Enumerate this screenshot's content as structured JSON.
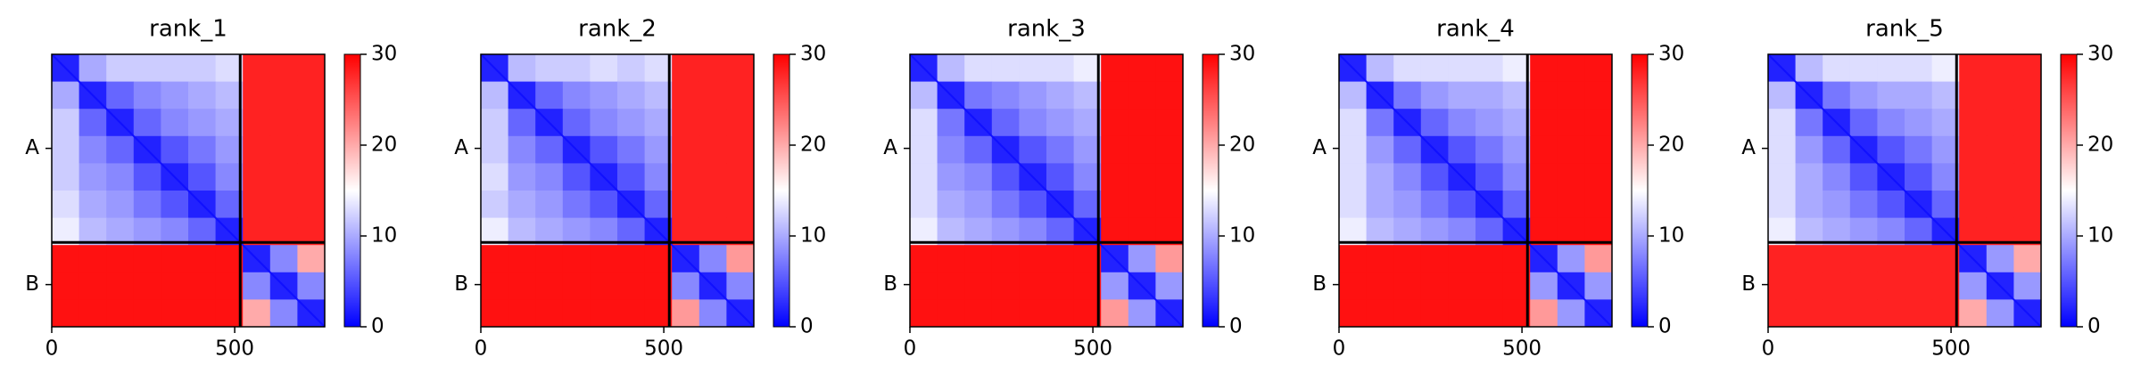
{
  "chart_data": [
    {
      "type": "heatmap",
      "title": "rank_1",
      "xlim": [
        0,
        746
      ],
      "xticks": [
        0,
        500
      ],
      "chains": [
        "A",
        "B"
      ],
      "chain_boundary": 515,
      "colormap": "bwr",
      "clim": [
        0,
        30
      ],
      "cticks": [
        0,
        10,
        20,
        30
      ],
      "z": [
        [
          2,
          10,
          12,
          12,
          12,
          12,
          13,
          28,
          28,
          28
        ],
        [
          10,
          2,
          6,
          8,
          9,
          10,
          11,
          28,
          28,
          28
        ],
        [
          12,
          6,
          2,
          6,
          8,
          9,
          10,
          28,
          28,
          28
        ],
        [
          12,
          8,
          6,
          2,
          5,
          7,
          9,
          28,
          28,
          28
        ],
        [
          12,
          9,
          8,
          5,
          2,
          5,
          8,
          28,
          28,
          28
        ],
        [
          13,
          10,
          9,
          7,
          5,
          2,
          6,
          28,
          28,
          28
        ],
        [
          14,
          11,
          10,
          9,
          8,
          6,
          2,
          28,
          28,
          28
        ],
        [
          29,
          29,
          29,
          29,
          29,
          29,
          29,
          2,
          8,
          20
        ],
        [
          29,
          29,
          29,
          29,
          29,
          29,
          29,
          8,
          2,
          8
        ],
        [
          29,
          29,
          29,
          29,
          29,
          29,
          29,
          20,
          8,
          2
        ]
      ]
    },
    {
      "type": "heatmap",
      "title": "rank_2",
      "xlim": [
        0,
        746
      ],
      "xticks": [
        0,
        500
      ],
      "chains": [
        "A",
        "B"
      ],
      "chain_boundary": 515,
      "colormap": "bwr",
      "clim": [
        0,
        30
      ],
      "cticks": [
        0,
        10,
        20,
        30
      ],
      "z": [
        [
          2,
          11,
          12,
          12,
          13,
          12,
          13,
          28,
          28,
          28
        ],
        [
          11,
          2,
          6,
          8,
          9,
          10,
          11,
          28,
          28,
          28
        ],
        [
          12,
          6,
          2,
          6,
          8,
          9,
          10,
          28,
          28,
          28
        ],
        [
          12,
          8,
          6,
          2,
          5,
          7,
          9,
          28,
          28,
          28
        ],
        [
          13,
          9,
          8,
          5,
          2,
          5,
          8,
          28,
          28,
          28
        ],
        [
          12,
          10,
          9,
          7,
          5,
          2,
          6,
          28,
          28,
          28
        ],
        [
          14,
          11,
          10,
          9,
          8,
          6,
          2,
          28,
          28,
          28
        ],
        [
          29,
          29,
          29,
          29,
          29,
          29,
          29,
          2,
          8,
          21
        ],
        [
          29,
          29,
          29,
          29,
          29,
          29,
          29,
          8,
          2,
          8
        ],
        [
          29,
          29,
          29,
          29,
          29,
          29,
          29,
          21,
          8,
          2
        ]
      ]
    },
    {
      "type": "heatmap",
      "title": "rank_3",
      "xlim": [
        0,
        746
      ],
      "xticks": [
        0,
        500
      ],
      "chains": [
        "A",
        "B"
      ],
      "chain_boundary": 515,
      "colormap": "bwr",
      "clim": [
        0,
        30
      ],
      "cticks": [
        0,
        10,
        20,
        30
      ],
      "z": [
        [
          2,
          11,
          13,
          13,
          13,
          13,
          14,
          29,
          29,
          29
        ],
        [
          11,
          2,
          7,
          8,
          9,
          10,
          11,
          29,
          29,
          29
        ],
        [
          13,
          7,
          2,
          6,
          8,
          9,
          10,
          29,
          29,
          29
        ],
        [
          13,
          8,
          6,
          2,
          5,
          7,
          9,
          29,
          29,
          29
        ],
        [
          13,
          9,
          8,
          5,
          2,
          5,
          8,
          29,
          29,
          29
        ],
        [
          13,
          10,
          9,
          7,
          5,
          2,
          6,
          29,
          29,
          29
        ],
        [
          14,
          11,
          10,
          9,
          8,
          6,
          2,
          29,
          29,
          29
        ],
        [
          29,
          29,
          29,
          29,
          29,
          29,
          29,
          2,
          9,
          21
        ],
        [
          29,
          29,
          29,
          29,
          29,
          29,
          29,
          9,
          2,
          9
        ],
        [
          29,
          29,
          29,
          29,
          29,
          29,
          29,
          21,
          9,
          2
        ]
      ]
    },
    {
      "type": "heatmap",
      "title": "rank_4",
      "xlim": [
        0,
        746
      ],
      "xticks": [
        0,
        500
      ],
      "chains": [
        "A",
        "B"
      ],
      "chain_boundary": 515,
      "colormap": "bwr",
      "clim": [
        0,
        30
      ],
      "cticks": [
        0,
        10,
        20,
        30
      ],
      "z": [
        [
          2,
          11,
          13,
          13,
          13,
          13,
          14,
          29,
          29,
          29
        ],
        [
          11,
          2,
          7,
          9,
          10,
          10,
          11,
          29,
          29,
          29
        ],
        [
          13,
          7,
          2,
          6,
          8,
          9,
          10,
          29,
          29,
          29
        ],
        [
          13,
          9,
          6,
          2,
          5,
          7,
          9,
          29,
          29,
          29
        ],
        [
          13,
          10,
          8,
          5,
          2,
          5,
          8,
          29,
          29,
          29
        ],
        [
          13,
          10,
          9,
          7,
          5,
          2,
          6,
          29,
          29,
          29
        ],
        [
          14,
          11,
          10,
          9,
          8,
          6,
          2,
          29,
          29,
          29
        ],
        [
          29,
          29,
          29,
          29,
          29,
          29,
          29,
          2,
          9,
          21
        ],
        [
          29,
          29,
          29,
          29,
          29,
          29,
          29,
          9,
          2,
          9
        ],
        [
          29,
          29,
          29,
          29,
          29,
          29,
          29,
          21,
          9,
          2
        ]
      ]
    },
    {
      "type": "heatmap",
      "title": "rank_5",
      "xlim": [
        0,
        746
      ],
      "xticks": [
        0,
        500
      ],
      "chains": [
        "A",
        "B"
      ],
      "chain_boundary": 515,
      "colormap": "bwr",
      "clim": [
        0,
        30
      ],
      "cticks": [
        0,
        10,
        20,
        30
      ],
      "z": [
        [
          2,
          11,
          13,
          13,
          13,
          13,
          14,
          28,
          28,
          28
        ],
        [
          11,
          2,
          7,
          9,
          10,
          10,
          11,
          28,
          28,
          28
        ],
        [
          13,
          7,
          2,
          6,
          8,
          9,
          10,
          28,
          28,
          28
        ],
        [
          13,
          9,
          6,
          2,
          5,
          7,
          9,
          28,
          28,
          28
        ],
        [
          13,
          10,
          8,
          5,
          2,
          5,
          8,
          28,
          28,
          28
        ],
        [
          13,
          10,
          9,
          7,
          5,
          2,
          6,
          28,
          28,
          28
        ],
        [
          14,
          11,
          10,
          9,
          8,
          6,
          2,
          28,
          28,
          28
        ],
        [
          28,
          28,
          28,
          28,
          28,
          28,
          28,
          2,
          9,
          20
        ],
        [
          28,
          28,
          28,
          28,
          28,
          28,
          28,
          9,
          2,
          9
        ],
        [
          28,
          28,
          28,
          28,
          28,
          28,
          28,
          20,
          9,
          2
        ]
      ]
    }
  ]
}
